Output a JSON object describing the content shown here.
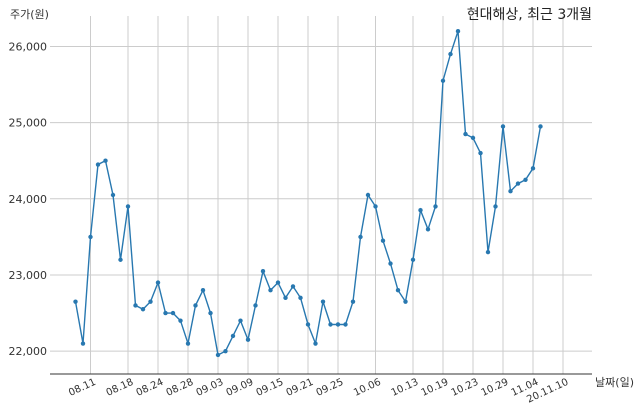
{
  "chart_data": {
    "type": "line",
    "title": "현대해상, 최근 3개월",
    "ylabel": "주가(원)",
    "xlabel": "날짜(일)",
    "ylim": [
      21700,
      26400
    ],
    "yticks": [
      22000,
      23000,
      24000,
      25000,
      26000
    ],
    "ytick_labels": [
      "22,000",
      "23,000",
      "24,000",
      "25,000",
      "26,000"
    ],
    "xtick_labels": [
      "08.11",
      "08.18",
      "08.24",
      "08.28",
      "09.03",
      "09.09",
      "09.15",
      "09.21",
      "09.25",
      "10.06",
      "10.13",
      "10.19",
      "10.23",
      "10.29",
      "11.04",
      "20.11.10"
    ],
    "xtick_indices": [
      2,
      7,
      11,
      15,
      19,
      23,
      27,
      31,
      35,
      40,
      45,
      49,
      53,
      57,
      61,
      65
    ],
    "grid": true,
    "color": "#2878b0",
    "series": [
      {
        "values": [
          22650,
          22100,
          23500,
          24450,
          24500,
          24050,
          23200,
          23900,
          22600,
          22550,
          22650,
          22900,
          22500,
          22500,
          22400,
          22100,
          22600,
          22800,
          22500,
          21950,
          22000,
          22200,
          22400,
          22150,
          22600,
          23050,
          22800,
          22900,
          22700,
          22850,
          22700,
          22350,
          22100,
          22650,
          22350,
          22350,
          22350,
          22650,
          23500,
          24050,
          23900,
          23450,
          23150,
          22800,
          22650,
          23200,
          23850,
          23600,
          23900,
          25550,
          25900,
          26200,
          24850,
          24800,
          24600,
          23300,
          23900,
          24950,
          24100,
          24200,
          24250,
          24400,
          24950
        ]
      }
    ]
  }
}
